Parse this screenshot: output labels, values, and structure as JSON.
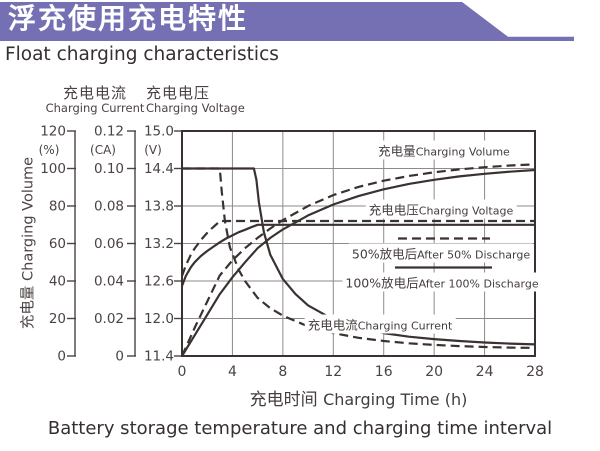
{
  "header": {
    "title_cn": "浮充使用充电特性",
    "title_en": "Float charging characteristics"
  },
  "footer": {
    "caption": "Battery storage temperature and charging time interval"
  },
  "colors": {
    "banner": "#7570b3",
    "line": "#3a3231",
    "grid": "#8f8a89",
    "text": "#4b4342"
  },
  "chart_data": {
    "type": "line",
    "grid": true,
    "x_axis": {
      "title_cn": "充电时间",
      "title_en": "Charging Time (h)",
      "range": [
        0,
        28
      ],
      "ticks": [
        "0",
        "4",
        "8",
        "12",
        "16",
        "20",
        "24",
        "28"
      ]
    },
    "y_axes": [
      {
        "id": "volume",
        "title_cn": "充电量",
        "title_en": "Charging Volume",
        "unit": "(%)",
        "range": [
          0,
          120
        ],
        "ticks": [
          "120",
          "100",
          "80",
          "60",
          "40",
          "20",
          "0"
        ]
      },
      {
        "id": "current",
        "title_cn": "充电电流",
        "title_en": "Charging Current",
        "unit": "(CA)",
        "range": [
          0,
          0.12
        ],
        "ticks": [
          "0.12",
          "0.10",
          "0.08",
          "0.06",
          "0.04",
          "0.02",
          "0"
        ]
      },
      {
        "id": "voltage",
        "title_cn": "充电电压",
        "title_en": "Charging Voltage",
        "unit": "(V)",
        "range": [
          11.4,
          15.0
        ],
        "ticks": [
          "15.0",
          "14.4",
          "13.8",
          "13.2",
          "12.6",
          "12.0",
          "11.4"
        ]
      }
    ],
    "series": [
      {
        "name": "Charging Current (after 100% discharge)",
        "axis": "current",
        "style": "solid",
        "points": [
          [
            0,
            0.1
          ],
          [
            5.7,
            0.1
          ],
          [
            5.9,
            0.094
          ],
          [
            6.1,
            0.082
          ],
          [
            6.5,
            0.066
          ],
          [
            7,
            0.054
          ],
          [
            8,
            0.041
          ],
          [
            9,
            0.033
          ],
          [
            10,
            0.027
          ],
          [
            12,
            0.0195
          ],
          [
            14,
            0.015
          ],
          [
            16,
            0.0122
          ],
          [
            18,
            0.0103
          ],
          [
            20,
            0.009
          ],
          [
            22,
            0.008
          ],
          [
            24,
            0.0072
          ],
          [
            26,
            0.0066
          ],
          [
            28,
            0.0062
          ]
        ]
      },
      {
        "name": "Charging Current (after 50% discharge)",
        "axis": "current",
        "style": "dashed",
        "points": [
          [
            0,
            0.1
          ],
          [
            3,
            0.1
          ],
          [
            3.15,
            0.088
          ],
          [
            3.4,
            0.072
          ],
          [
            3.8,
            0.058
          ],
          [
            4.5,
            0.046
          ],
          [
            5,
            0.04
          ],
          [
            6,
            0.031
          ],
          [
            7,
            0.0255
          ],
          [
            8,
            0.0215
          ],
          [
            10,
            0.0158
          ],
          [
            12,
            0.0122
          ],
          [
            14,
            0.0097
          ],
          [
            16,
            0.008
          ],
          [
            18,
            0.0068
          ],
          [
            20,
            0.0059
          ],
          [
            22,
            0.0053
          ],
          [
            24,
            0.0048
          ],
          [
            26,
            0.0045
          ],
          [
            28,
            0.0043
          ]
        ]
      },
      {
        "name": "Charging Voltage (after 100% discharge)",
        "axis": "voltage",
        "style": "solid",
        "points": [
          [
            0,
            12.52
          ],
          [
            0.3,
            12.68
          ],
          [
            0.7,
            12.82
          ],
          [
            1,
            12.9
          ],
          [
            1.5,
            13.0
          ],
          [
            2,
            13.08
          ],
          [
            2.5,
            13.15
          ],
          [
            3,
            13.22
          ],
          [
            3.5,
            13.28
          ],
          [
            4,
            13.33
          ],
          [
            4.5,
            13.38
          ],
          [
            5,
            13.42
          ],
          [
            5.5,
            13.46
          ],
          [
            6,
            13.5
          ],
          [
            28,
            13.5
          ]
        ]
      },
      {
        "name": "Charging Voltage (after 50% discharge)",
        "axis": "voltage",
        "style": "dashed",
        "points": [
          [
            0,
            12.68
          ],
          [
            0.3,
            12.85
          ],
          [
            0.7,
            13.02
          ],
          [
            1,
            13.12
          ],
          [
            1.3,
            13.2
          ],
          [
            1.6,
            13.28
          ],
          [
            2,
            13.37
          ],
          [
            2.4,
            13.45
          ],
          [
            2.8,
            13.52
          ],
          [
            3,
            13.56
          ],
          [
            28,
            13.56
          ]
        ]
      },
      {
        "name": "Charging Volume (after 100% discharge)",
        "axis": "volume",
        "style": "solid",
        "points": [
          [
            0,
            0
          ],
          [
            1,
            11
          ],
          [
            2,
            22
          ],
          [
            3,
            33
          ],
          [
            4,
            42
          ],
          [
            5,
            50
          ],
          [
            6,
            57.5
          ],
          [
            7,
            63
          ],
          [
            8,
            67.5
          ],
          [
            10,
            75
          ],
          [
            12,
            80.8
          ],
          [
            14,
            85.3
          ],
          [
            16,
            88.9
          ],
          [
            18,
            91.8
          ],
          [
            20,
            94
          ],
          [
            22,
            95.8
          ],
          [
            24,
            97.2
          ],
          [
            26,
            98.3
          ],
          [
            28,
            99.2
          ]
        ]
      },
      {
        "name": "Charging Volume (after 50% discharge)",
        "axis": "volume",
        "style": "dashed",
        "points": [
          [
            0,
            0
          ],
          [
            1,
            15
          ],
          [
            2,
            29
          ],
          [
            3,
            43
          ],
          [
            4,
            51
          ],
          [
            5,
            57.5
          ],
          [
            6,
            63
          ],
          [
            7,
            68
          ],
          [
            8,
            72.5
          ],
          [
            10,
            80
          ],
          [
            12,
            85.8
          ],
          [
            14,
            90.2
          ],
          [
            16,
            93.5
          ],
          [
            18,
            96
          ],
          [
            20,
            98
          ],
          [
            22,
            99.5
          ],
          [
            24,
            100.7
          ],
          [
            26,
            101.6
          ],
          [
            28,
            102.2
          ]
        ]
      }
    ],
    "plot_labels": {
      "volume": {
        "cn": "充电量",
        "en": "Charging Volume"
      },
      "voltage": {
        "cn": "充电电压",
        "en": "Charging Voltage"
      },
      "after50": {
        "cn": "50%放电后",
        "en": "After 50% Discharge"
      },
      "after100": {
        "cn": "100%放电后",
        "en": "After 100% Discharge"
      },
      "current": {
        "cn": "充电电流",
        "en": "Charging Current"
      }
    },
    "legend": {
      "dashed_means": "After 50% Discharge",
      "solid_means": "After 100% Discharge",
      "position": "inside-right"
    }
  }
}
